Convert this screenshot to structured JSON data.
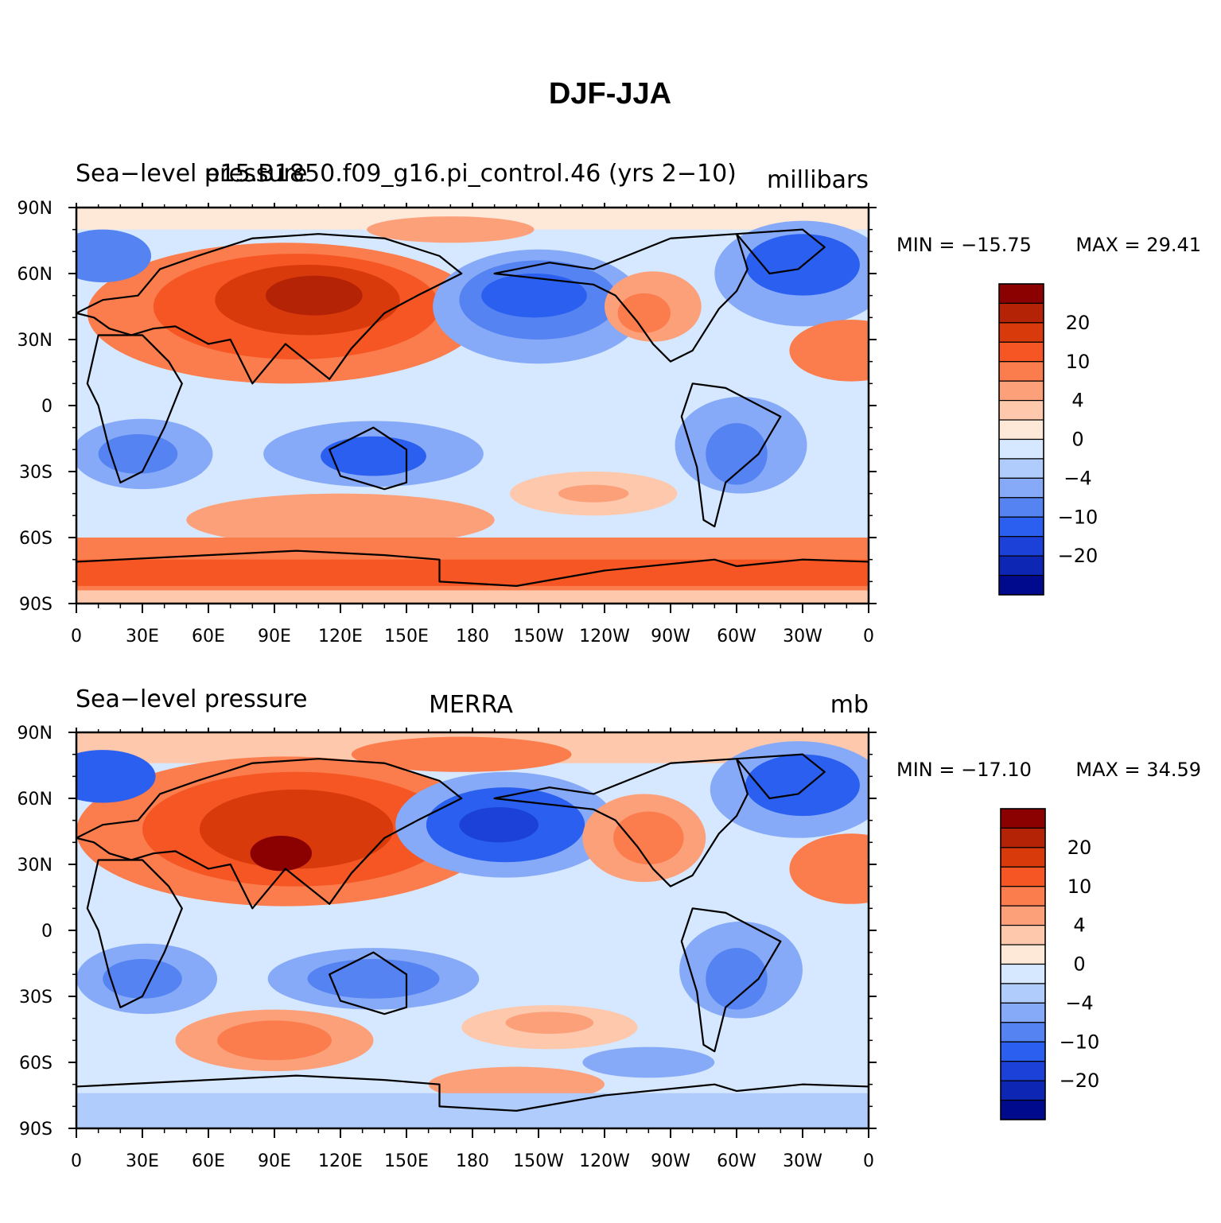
{
  "title": "DJF-JJA",
  "panels": [
    {
      "left_title": "Sea−level pressure",
      "center_title": "e15.B1850.f09_g16.pi_control.46 (yrs 2−10)",
      "units": "millibars",
      "min_label": "MIN = −15.75",
      "max_label": "MAX =   29.41",
      "min": -15.75,
      "max": 29.41
    },
    {
      "left_title": "Sea−level pressure",
      "center_title": "MERRA",
      "units": "mb",
      "min_label": "MIN = −17.10",
      "max_label": "MAX =   34.59",
      "min": -17.1,
      "max": 34.59
    }
  ],
  "lat_labels": [
    "90N",
    "60N",
    "30N",
    "0",
    "30S",
    "60S",
    "90S"
  ],
  "lon_labels": [
    "0",
    "30E",
    "60E",
    "90E",
    "120E",
    "150E",
    "180",
    "150W",
    "120W",
    "90W",
    "60W",
    "30W",
    "0"
  ],
  "colorbar": {
    "labels": [
      "20",
      "10",
      "4",
      "0",
      "−4",
      "−10",
      "−20"
    ],
    "colors_top_to_bottom": [
      "#8b0000",
      "#b52306",
      "#d93a0c",
      "#f65624",
      "#fb7c4c",
      "#fca07a",
      "#fdc8ac",
      "#fee8d8",
      "#d6e8ff",
      "#b0ccfc",
      "#86aaf7",
      "#5583f2",
      "#2a5ff0",
      "#1b41d8",
      "#0d26b4",
      "#000a8c"
    ]
  }
}
